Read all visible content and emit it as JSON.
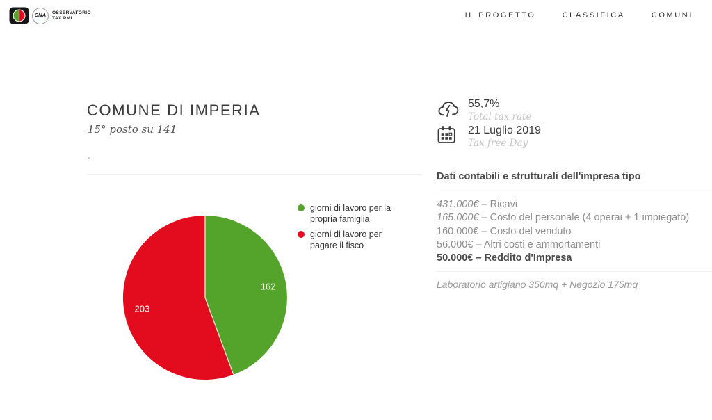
{
  "header": {
    "logo": {
      "cna": "CNA",
      "osservatorio_line1": "OSSERVATORIO",
      "osservatorio_line2": "TAX PMI"
    },
    "nav": [
      {
        "label": "IL PROGETTO"
      },
      {
        "label": "CLASSIFICA"
      },
      {
        "label": "COMUNI"
      }
    ]
  },
  "main": {
    "title": "COMUNE DI IMPERIA",
    "subtitle": "15° posto su 141",
    "dot": ".",
    "stats": [
      {
        "icon": "storm-cloud-icon",
        "value": "55,7%",
        "label": "Total tax rate"
      },
      {
        "icon": "calendar-icon",
        "value": "21 Luglio 2019",
        "label": "Tax free Day"
      }
    ],
    "dati": {
      "heading": "Dati contabili e strutturali dell'impresa tipo",
      "rows": [
        {
          "amount": "431.000€",
          "desc": " – Ricavi"
        },
        {
          "amount": "165.000€",
          "desc": " – Costo del personale (4 operai + 1 impiegato)"
        },
        {
          "amount": "160.000€",
          "desc": " – Costo del venduto"
        },
        {
          "amount": "56.000€",
          "desc": " – Altri costi e ammortamenti"
        },
        {
          "amount": "50.000€",
          "desc": " – Reddito d'Impresa"
        }
      ],
      "footer": "Laboratorio artigiano 350mq + Negozio 175mq"
    }
  },
  "chart_data": {
    "type": "pie",
    "title": "",
    "total": 365,
    "unit": "giorni",
    "start_angle_deg": 0,
    "direction": "clockwise",
    "legend_position": "right",
    "slices": [
      {
        "label": "giorni di lavoro per la propria famiglia",
        "value": 162,
        "color": "#54a32a",
        "data_label": "162"
      },
      {
        "label": "giorni di lavoro per pagare il fisco",
        "value": 203,
        "color": "#e30c1e",
        "data_label": "203"
      }
    ],
    "slice_border_color": "#f1e9d2",
    "label_color": "#ffffff"
  },
  "colors": {
    "green": "#54a32a",
    "red": "#e30c1e",
    "text_dark": "#3c3c3c",
    "text_gray": "#8e8e8e",
    "rule": "#f0f0f0"
  }
}
